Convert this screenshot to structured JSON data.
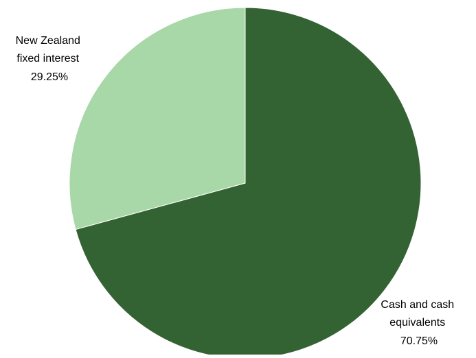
{
  "chart_data": {
    "type": "pie",
    "title": "",
    "slices": [
      {
        "label_lines": [
          "Cash and cash",
          "equivalents",
          "70.75%"
        ],
        "category": "Cash and cash equivalents",
        "value": 70.75,
        "value_label": "70.75%",
        "color": "#336333"
      },
      {
        "label_lines": [
          "New Zealand",
          "fixed interest",
          "29.25%"
        ],
        "category": "New Zealand fixed interest",
        "value": 29.25,
        "value_label": "29.25%",
        "color": "#A9D8A8"
      }
    ],
    "start_angle": "12 o'clock",
    "direction": "clockwise",
    "legend": "none",
    "data_labels": "outside"
  }
}
